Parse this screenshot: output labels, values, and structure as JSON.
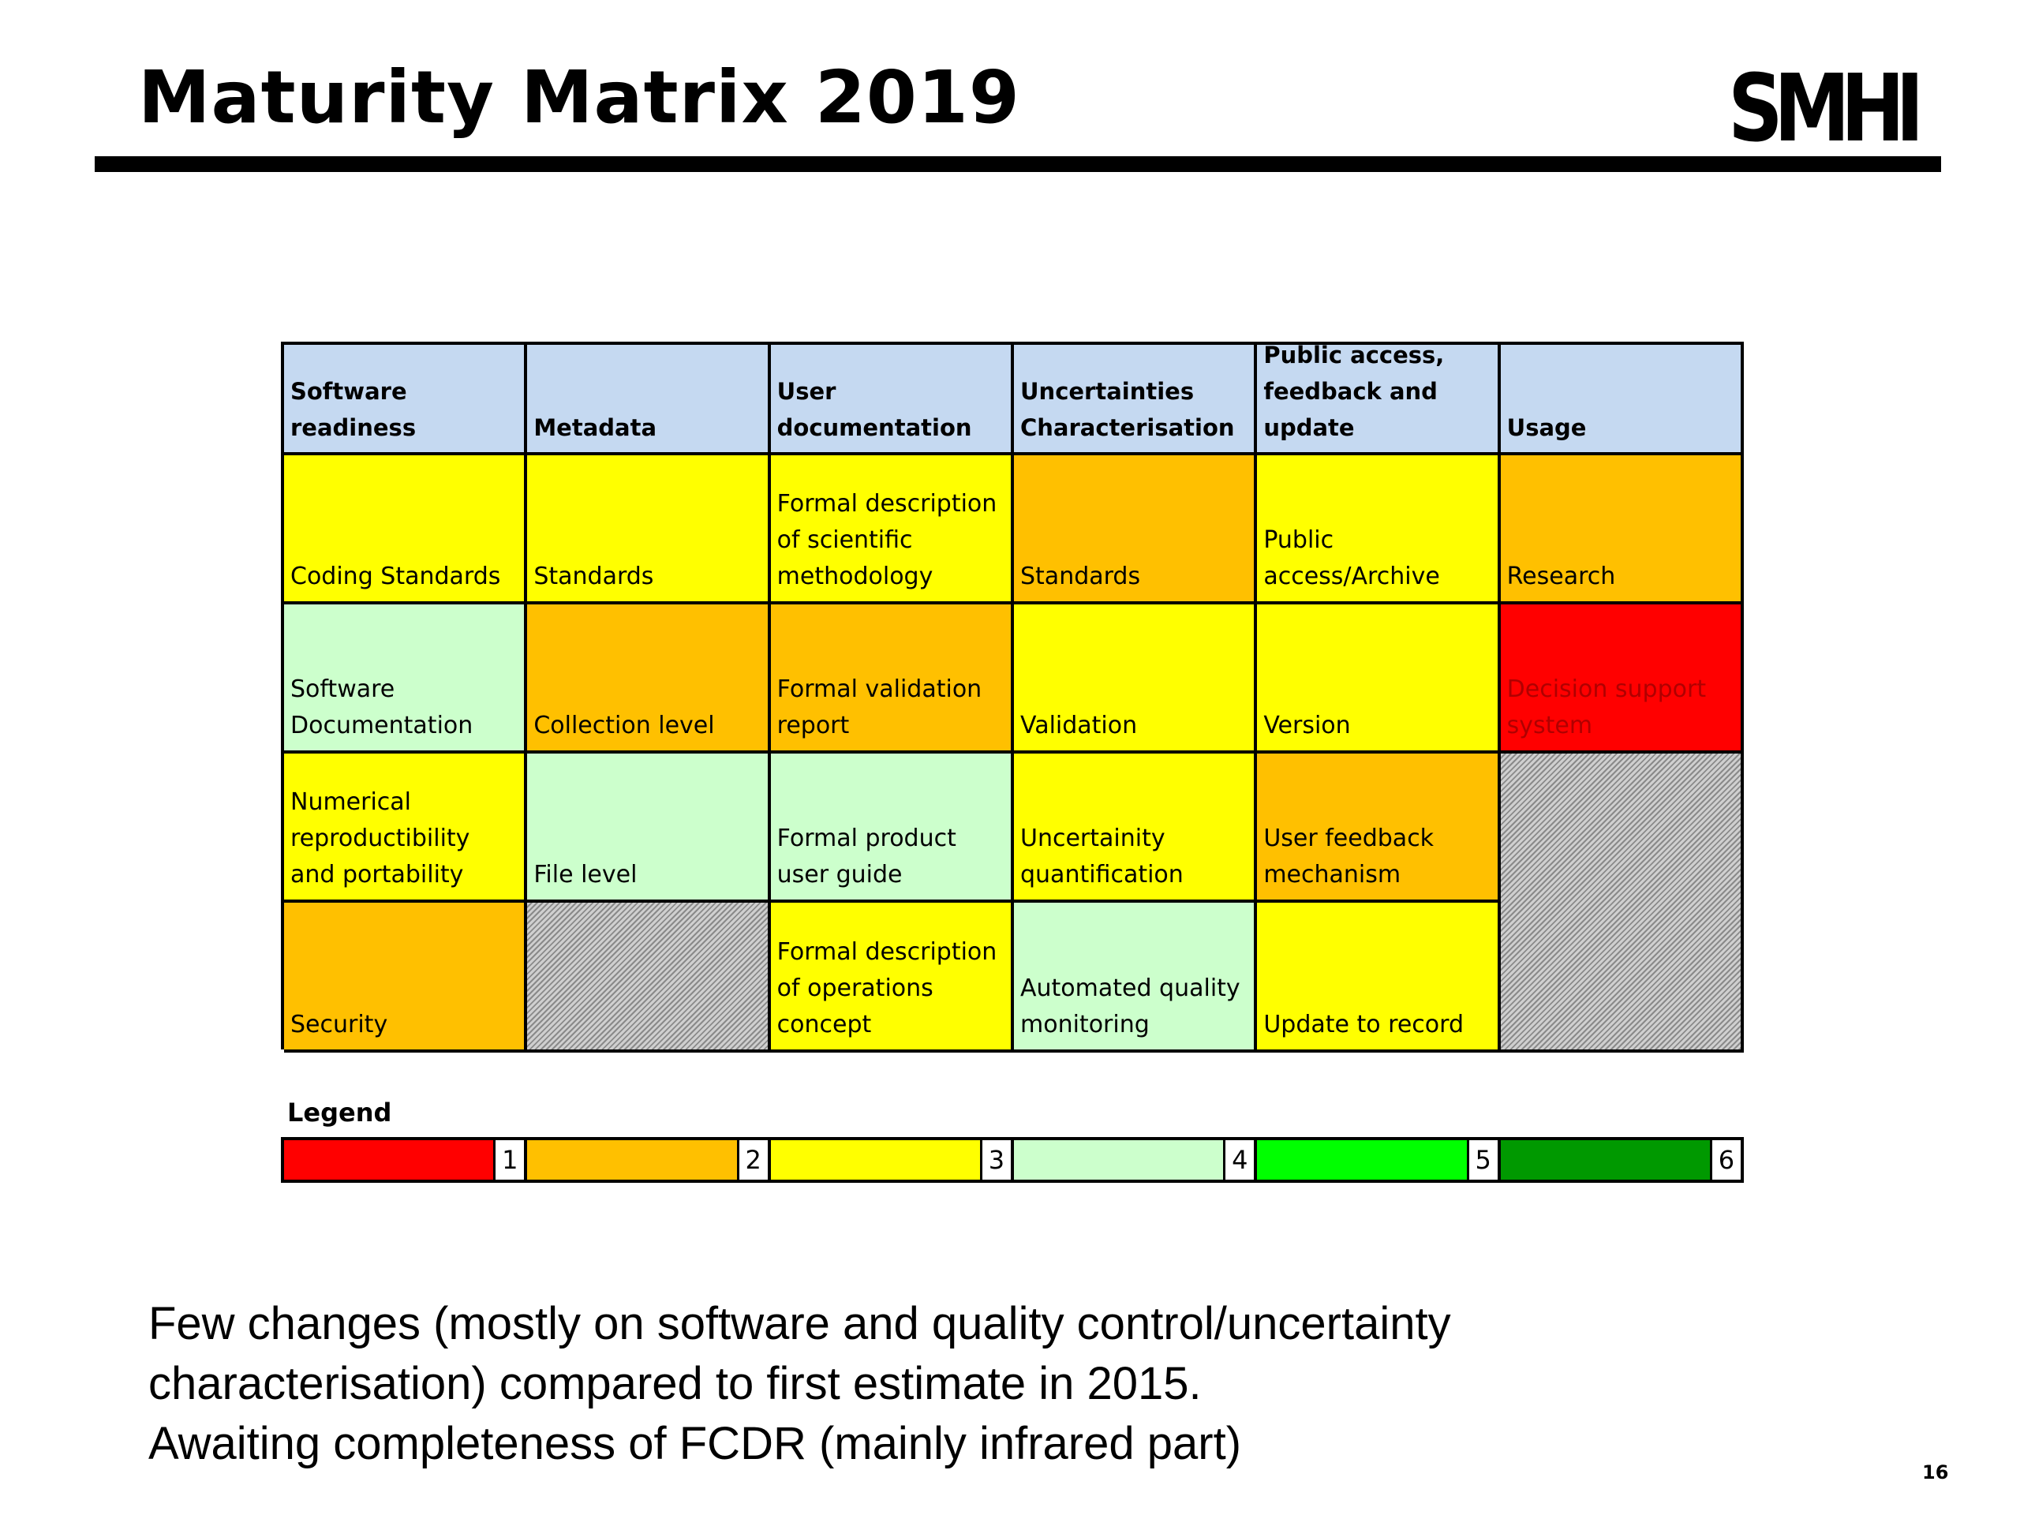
{
  "slide": {
    "title": "Maturity Matrix 2019",
    "logo_text": "SMHI",
    "page_number": "16"
  },
  "matrix": {
    "headers": [
      "Software readiness",
      "Metadata",
      "User documentation",
      "Uncertainties Characterisation",
      "Public access, feedback and update",
      "Usage"
    ],
    "rows": [
      [
        {
          "text": "Coding Standards",
          "level": 3
        },
        {
          "text": "Standards",
          "level": 3
        },
        {
          "text": "Formal description of scientific methodology",
          "level": 3
        },
        {
          "text": "Standards",
          "level": 2
        },
        {
          "text": "Public access/Archive",
          "level": 3
        },
        {
          "text": "Research",
          "level": 2
        }
      ],
      [
        {
          "text": "Software Documentation",
          "level": 4
        },
        {
          "text": "Collection level",
          "level": 2
        },
        {
          "text": "Formal validation report",
          "level": 2
        },
        {
          "text": "Validation",
          "level": 3
        },
        {
          "text": "Version",
          "level": 3
        },
        {
          "text": "Decision support system",
          "level": 1
        }
      ],
      [
        {
          "text": "Numerical reproductibility and portability",
          "level": 3
        },
        {
          "text": "File level",
          "level": 4
        },
        {
          "text": "Formal product user guide",
          "level": 4
        },
        {
          "text": "Uncertainity quantification",
          "level": 3
        },
        {
          "text": "User feedback mechanism",
          "level": 2
        },
        {
          "text": "",
          "level": "n/a"
        }
      ],
      [
        {
          "text": "Security",
          "level": 2
        },
        {
          "text": "",
          "level": "n/a"
        },
        {
          "text": "Formal description of operations concept",
          "level": 3
        },
        {
          "text": "Automated quality monitoring",
          "level": 4
        },
        {
          "text": "Update to record",
          "level": 3
        }
      ]
    ]
  },
  "legend": {
    "title": "Legend",
    "items": [
      {
        "label": "1",
        "color": "#ff0000"
      },
      {
        "label": "2",
        "color": "#ffc000"
      },
      {
        "label": "3",
        "color": "#ffff00"
      },
      {
        "label": "4",
        "color": "#ccffcc"
      },
      {
        "label": "5",
        "color": "#00ff00"
      },
      {
        "label": "6",
        "color": "#009900"
      }
    ]
  },
  "notes": [
    "Few changes (mostly on software and quality control/uncertainty",
    "characterisation) compared to first estimate in 2015.",
    "Awaiting completeness of FCDR (mainly infrared part)"
  ]
}
